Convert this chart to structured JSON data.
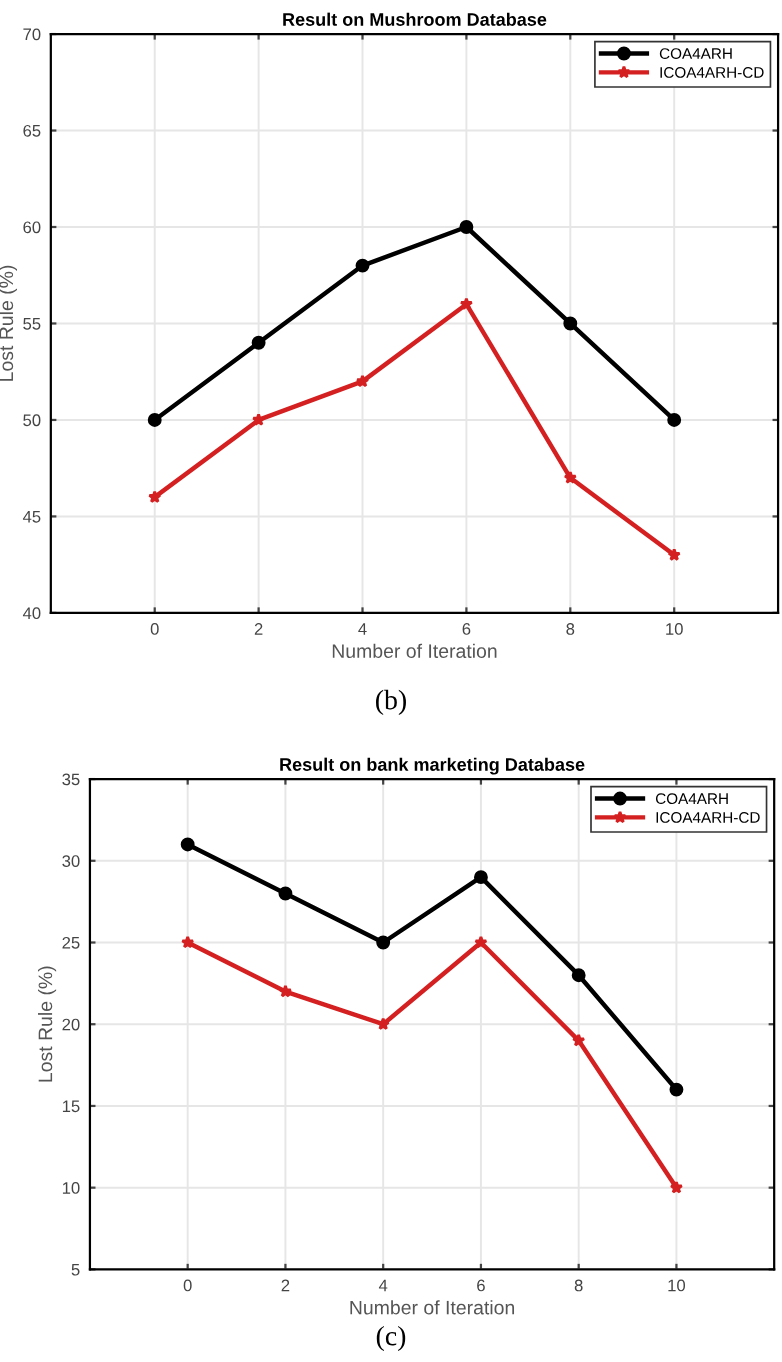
{
  "chart_data": [
    {
      "type": "line",
      "title": "Result on Mushroom Database",
      "xlabel": "Number of Iteration",
      "ylabel": "Lost Rule (%)",
      "x": [
        0,
        2,
        4,
        6,
        8,
        10
      ],
      "xlim": [
        -2,
        12
      ],
      "xticks": [
        0,
        2,
        4,
        6,
        8,
        10
      ],
      "ylim": [
        40,
        70
      ],
      "yticks": [
        40,
        45,
        50,
        55,
        60,
        65,
        70
      ],
      "grid": true,
      "legend": "top right",
      "annotations": [
        "(b)"
      ],
      "series": [
        {
          "name": "COA4ARH",
          "color": "#000000",
          "marker": "circle",
          "values": [
            50,
            54,
            58,
            60,
            55,
            50
          ]
        },
        {
          "name": "ICOA4ARH-CD",
          "color": "#d42020",
          "marker": "star",
          "values": [
            46,
            50,
            52,
            56,
            47,
            43
          ]
        }
      ]
    },
    {
      "type": "line",
      "title": "Result on bank marketing Database",
      "xlabel": "Number of Iteration",
      "ylabel": "Lost Rule (%)",
      "x": [
        0,
        2,
        4,
        6,
        8,
        10
      ],
      "xlim": [
        -2,
        12
      ],
      "xticks": [
        0,
        2,
        4,
        6,
        8,
        10
      ],
      "ylim": [
        5,
        35
      ],
      "yticks": [
        5,
        10,
        15,
        20,
        25,
        30,
        35
      ],
      "grid": true,
      "legend": "top right",
      "annotations": [
        "(c)"
      ],
      "series": [
        {
          "name": "COA4ARH",
          "color": "#000000",
          "marker": "circle",
          "values": [
            31,
            28,
            25,
            29,
            23,
            16
          ]
        },
        {
          "name": "ICOA4ARH-CD",
          "color": "#d42020",
          "marker": "star",
          "values": [
            25,
            22,
            20,
            25,
            19,
            10
          ]
        }
      ]
    }
  ]
}
